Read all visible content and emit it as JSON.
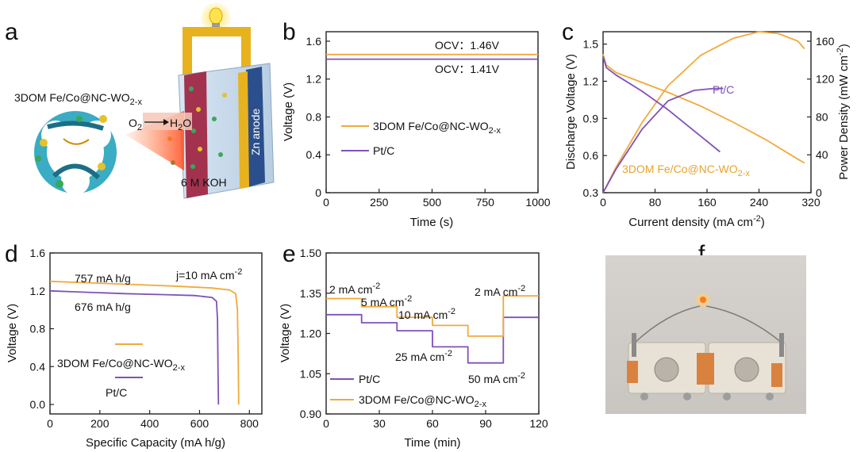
{
  "panels": {
    "a": {
      "letter": "a",
      "catalyst_label": "3DOM Fe/Co@NC-WO",
      "catalyst_sub": "2-x",
      "reaction_o2": "O",
      "reaction_o2_sub": "2",
      "reaction_h2o": "H",
      "reaction_h2o_sub": "2",
      "reaction_h2o_end": "O",
      "electrolyte": "6 M KOH",
      "anode": "Zn anode"
    },
    "b": {
      "letter": "b"
    },
    "c": {
      "letter": "c"
    },
    "d": {
      "letter": "d"
    },
    "e": {
      "letter": "e"
    },
    "f": {
      "letter": "f"
    }
  },
  "colors": {
    "orange": "#F2A93B",
    "purple": "#7F52B8",
    "plate": "#A3324F",
    "anode": "#2B4E8C",
    "frame_yellow": "#E8B21E"
  },
  "chart_data": [
    {
      "id": "b",
      "type": "line",
      "xlabel": "Time (s)",
      "ylabel": "Voltage (V)",
      "xlim": [
        0,
        1000
      ],
      "ylim": [
        0,
        1.7
      ],
      "xticks": [
        0,
        250,
        500,
        750,
        1000
      ],
      "yticks": [
        0,
        0.4,
        0.8,
        1.2,
        1.6
      ],
      "yticklabels": [
        "0",
        "0.4",
        "0.8",
        "1.2",
        "1.6"
      ],
      "series": [
        {
          "name": "3DOM Fe/Co@NC-WO",
          "name_sub": "2-x",
          "color": "#F2A93B",
          "x": [
            0,
            1000
          ],
          "y": [
            1.46,
            1.46
          ]
        },
        {
          "name": "Pt/C",
          "color": "#7F52B8",
          "x": [
            0,
            1000
          ],
          "y": [
            1.41,
            1.41
          ]
        }
      ],
      "annotations": [
        "OCV：1.46V",
        "OCV：1.41V"
      ]
    },
    {
      "id": "c",
      "type": "line",
      "xlabel": "Current density (mA cm",
      "xlabel_sup": "-2",
      "xlabel_end": ")",
      "ylabel": "Discharge Voltage (V)",
      "y2label": "Power Density (mW cm",
      "y2label_sup": "-2",
      "y2label_end": ")",
      "xlim": [
        0,
        320
      ],
      "ylim": [
        0.3,
        1.6
      ],
      "y2lim": [
        0,
        170
      ],
      "xticks": [
        0,
        80,
        160,
        240,
        320
      ],
      "yticks": [
        0.3,
        0.6,
        0.9,
        1.2,
        1.5
      ],
      "yticklabels": [
        "0.3",
        "0.6",
        "0.9",
        "1.2",
        "1.5"
      ],
      "y2ticks": [
        0,
        40,
        80,
        120,
        160
      ],
      "series": [
        {
          "name": "3DOM Fe/Co@NC-WO",
          "name_sub": "2-x",
          "axis": "left",
          "color": "#F2A93B",
          "x": [
            0,
            5,
            20,
            60,
            100,
            150,
            200,
            250,
            300,
            310
          ],
          "y": [
            1.42,
            1.33,
            1.27,
            1.19,
            1.11,
            1.0,
            0.87,
            0.73,
            0.57,
            0.54
          ]
        },
        {
          "name": "3DOM Fe/Co@NC-WO",
          "name_sub": "2-x",
          "axis": "right",
          "color": "#F2A93B",
          "x": [
            0,
            20,
            60,
            100,
            150,
            200,
            240,
            270,
            300,
            310
          ],
          "y": [
            0,
            27,
            74,
            113,
            145,
            163,
            170,
            168,
            160,
            152
          ]
        },
        {
          "name": "Pt/C",
          "axis": "left",
          "color": "#7F52B8",
          "x": [
            0,
            5,
            20,
            60,
            100,
            140,
            180
          ],
          "y": [
            1.4,
            1.31,
            1.25,
            1.12,
            0.97,
            0.8,
            0.63
          ]
        },
        {
          "name": "Pt/C",
          "axis": "right",
          "color": "#7F52B8",
          "x": [
            0,
            20,
            60,
            100,
            140,
            170,
            185
          ],
          "y": [
            0,
            25,
            67,
            97,
            108,
            110,
            110
          ]
        }
      ],
      "annotations": [
        "Pt/C",
        "3DOM Fe/Co@NC-WO"
      ]
    },
    {
      "id": "d",
      "type": "line",
      "xlabel": "Specific Capacity (mA h/g)",
      "ylabel": "Voltage (V)",
      "xlim": [
        0,
        850
      ],
      "ylim": [
        -0.1,
        1.6
      ],
      "xticks": [
        0,
        200,
        400,
        600,
        800
      ],
      "yticks": [
        0,
        0.4,
        0.8,
        1.2,
        1.6
      ],
      "yticklabels": [
        "0.0",
        "0.4",
        "0.8",
        "1.2",
        "1.6"
      ],
      "series": [
        {
          "name": "3DOM Fe/Co@NC-WO",
          "name_sub": "2-x",
          "color": "#F2A93B",
          "x": [
            0,
            100,
            300,
            500,
            650,
            720,
            745,
            752,
            755,
            757
          ],
          "y": [
            1.3,
            1.29,
            1.27,
            1.25,
            1.23,
            1.21,
            1.17,
            1.0,
            0.5,
            0.0
          ]
        },
        {
          "name": "Pt/C",
          "color": "#7F52B8",
          "x": [
            0,
            100,
            300,
            450,
            580,
            650,
            668,
            672,
            674,
            676
          ],
          "y": [
            1.2,
            1.19,
            1.17,
            1.16,
            1.15,
            1.13,
            1.09,
            0.9,
            0.4,
            0.0
          ]
        }
      ],
      "annotations": [
        "757 mA h/g",
        "676 mA h/g",
        "j=10 mA cm",
        "-2"
      ]
    },
    {
      "id": "e",
      "type": "line",
      "xlabel": "Time (min)",
      "ylabel": "Voltage (V)",
      "xlim": [
        0,
        120
      ],
      "ylim": [
        0.9,
        1.5
      ],
      "xticks": [
        0,
        30,
        60,
        90,
        120
      ],
      "yticks": [
        0.9,
        1.05,
        1.2,
        1.35,
        1.5
      ],
      "yticklabels": [
        "0.90",
        "1.05",
        "1.20",
        "1.35",
        "1.50"
      ],
      "series": [
        {
          "name": "Pt/C",
          "color": "#7F52B8",
          "x": [
            0,
            20,
            20,
            40,
            40,
            60,
            60,
            80,
            80,
            100,
            100,
            120
          ],
          "y": [
            1.27,
            1.27,
            1.24,
            1.24,
            1.21,
            1.21,
            1.15,
            1.15,
            1.09,
            1.09,
            1.26,
            1.26
          ]
        },
        {
          "name": "3DOM Fe/Co@NC-WO",
          "name_sub": "2-x",
          "color": "#F2A93B",
          "x": [
            0,
            20,
            20,
            40,
            40,
            60,
            60,
            80,
            80,
            100,
            100,
            120
          ],
          "y": [
            1.33,
            1.33,
            1.3,
            1.3,
            1.26,
            1.26,
            1.23,
            1.23,
            1.19,
            1.19,
            1.34,
            1.34
          ]
        }
      ],
      "annotations": [
        "2 mA cm",
        "5 mA cm",
        "10 mA cm",
        "25 mA cm",
        "50 mA cm",
        "2 mA cm",
        "-2"
      ]
    }
  ]
}
